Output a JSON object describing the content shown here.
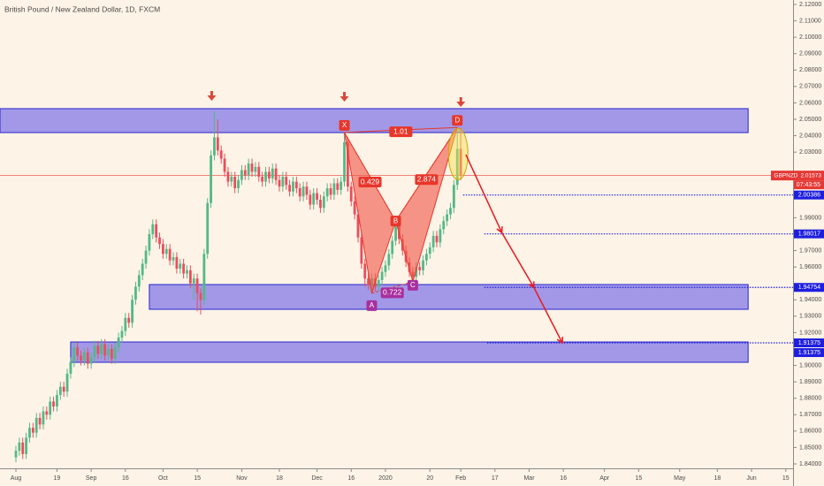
{
  "chart_data": {
    "type": "candlestick",
    "title": "British Pound / New Zealand Dollar, 1D, FXCM",
    "up_color": "#53b987",
    "down_color": "#eb4d5c",
    "x": [
      0,
      1,
      2,
      3,
      4,
      5,
      6,
      7,
      8,
      9,
      10,
      11,
      12,
      13,
      14,
      15,
      16,
      17,
      18,
      19,
      20,
      21,
      22,
      23,
      24,
      25,
      26,
      27,
      28,
      29,
      30,
      31,
      32,
      33,
      34,
      35,
      36,
      37,
      38,
      39,
      40,
      41,
      42,
      43,
      44,
      45,
      46,
      47,
      48,
      49,
      50,
      51,
      52,
      53,
      54,
      55,
      56,
      57,
      58,
      59,
      60,
      61,
      62,
      63,
      64,
      65,
      66,
      67,
      68,
      69,
      70,
      71,
      72,
      73,
      74,
      75,
      76,
      77,
      78,
      79,
      80,
      81,
      82,
      83,
      84,
      85,
      86,
      87,
      88,
      89,
      90,
      91,
      92,
      93,
      94,
      95,
      96,
      97,
      98,
      99,
      100,
      101,
      102,
      103,
      104,
      105,
      106,
      107,
      108,
      109,
      110,
      111,
      112,
      113,
      114,
      115,
      116,
      117,
      118,
      119,
      120,
      121,
      122,
      123,
      124,
      125,
      126,
      127,
      128,
      129,
      130
    ],
    "open": [
      1.844,
      1.848,
      1.853,
      1.846,
      1.856,
      1.862,
      1.859,
      1.868,
      1.864,
      1.872,
      1.87,
      1.878,
      1.875,
      1.882,
      1.887,
      1.884,
      1.895,
      1.902,
      1.911,
      1.906,
      1.903,
      1.908,
      1.901,
      1.905,
      1.912,
      1.907,
      1.913,
      1.906,
      1.91,
      1.904,
      1.911,
      1.917,
      1.921,
      1.929,
      1.926,
      1.94,
      1.948,
      1.955,
      1.962,
      1.97,
      1.98,
      1.986,
      1.978,
      1.974,
      1.968,
      1.971,
      1.964,
      1.966,
      1.959,
      1.962,
      1.956,
      1.958,
      1.95,
      1.953,
      1.944,
      1.94,
      1.968,
      1.999,
      2.028,
      2.039,
      2.031,
      2.026,
      2.018,
      2.012,
      2.015,
      2.008,
      2.013,
      2.019,
      2.016,
      2.023,
      2.018,
      2.021,
      2.015,
      2.012,
      2.018,
      2.014,
      2.02,
      2.013,
      2.009,
      2.015,
      2.01,
      2.006,
      2.012,
      2.008,
      2.003,
      2.009,
      2.004,
      1.998,
      2.005,
      2.001,
      1.996,
      2.003,
      2.008,
      2.004,
      2.011,
      2.007,
      2.012,
      2.036,
      2.009,
      2.0,
      1.992,
      1.978,
      1.962,
      1.953,
      1.949,
      1.953,
      1.948,
      1.952,
      1.957,
      1.961,
      1.968,
      1.976,
      1.985,
      1.977,
      1.97,
      1.963,
      1.957,
      1.954,
      1.96,
      1.958,
      1.964,
      1.968,
      1.972,
      1.979,
      1.975,
      1.983,
      1.988,
      1.992,
      1.996,
      2.01,
      2.032
    ],
    "high": [
      1.851,
      1.856,
      1.856,
      1.859,
      1.865,
      1.865,
      1.871,
      1.871,
      1.875,
      1.875,
      1.881,
      1.881,
      1.885,
      1.89,
      1.89,
      1.898,
      1.905,
      1.914,
      1.914,
      1.909,
      1.911,
      1.911,
      1.908,
      1.915,
      1.915,
      1.916,
      1.916,
      1.913,
      1.913,
      1.914,
      1.92,
      1.924,
      1.932,
      1.932,
      1.943,
      1.951,
      1.958,
      1.965,
      1.973,
      1.983,
      1.989,
      1.989,
      1.981,
      1.977,
      1.974,
      1.974,
      1.969,
      1.969,
      1.965,
      1.965,
      1.961,
      1.961,
      1.956,
      1.956,
      1.947,
      1.971,
      2.002,
      2.031,
      2.055,
      2.05,
      2.034,
      2.029,
      2.021,
      2.018,
      2.018,
      2.016,
      2.022,
      2.022,
      2.026,
      2.026,
      2.024,
      2.024,
      2.018,
      2.021,
      2.021,
      2.023,
      2.023,
      2.016,
      2.018,
      2.018,
      2.013,
      2.015,
      2.015,
      2.011,
      2.012,
      2.012,
      2.007,
      2.008,
      2.008,
      2.004,
      2.006,
      2.011,
      2.011,
      2.014,
      2.014,
      2.015,
      2.042,
      2.039,
      2.012,
      2.003,
      1.995,
      1.981,
      1.965,
      1.956,
      1.956,
      1.956,
      1.955,
      1.96,
      1.964,
      1.971,
      1.979,
      1.988,
      1.988,
      1.98,
      1.973,
      1.966,
      1.96,
      1.963,
      1.963,
      1.967,
      1.971,
      1.975,
      1.982,
      1.982,
      1.986,
      1.991,
      1.995,
      1.999,
      2.013,
      2.042,
      2.045
    ],
    "low": [
      1.841,
      1.845,
      1.843,
      1.843,
      1.853,
      1.856,
      1.856,
      1.861,
      1.861,
      1.867,
      1.867,
      1.872,
      1.872,
      1.879,
      1.881,
      1.881,
      1.892,
      1.899,
      1.903,
      1.9,
      1.9,
      1.898,
      1.898,
      1.902,
      1.904,
      1.904,
      1.903,
      1.903,
      1.901,
      1.901,
      1.908,
      1.914,
      1.918,
      1.923,
      1.923,
      1.937,
      1.945,
      1.952,
      1.959,
      1.967,
      1.977,
      1.975,
      1.971,
      1.965,
      1.965,
      1.961,
      1.961,
      1.956,
      1.956,
      1.953,
      1.953,
      1.947,
      1.94,
      1.933,
      1.931,
      1.937,
      1.965,
      1.996,
      2.025,
      2.028,
      2.023,
      2.015,
      2.009,
      2.009,
      2.005,
      2.005,
      2.01,
      2.013,
      2.013,
      2.015,
      2.015,
      2.012,
      2.009,
      2.009,
      2.011,
      2.011,
      2.01,
      2.006,
      2.006,
      2.007,
      2.003,
      2.003,
      2.005,
      2.0,
      2.0,
      2.001,
      1.995,
      1.995,
      1.998,
      1.993,
      1.993,
      2.0,
      2.001,
      2.001,
      2.004,
      2.004,
      2.009,
      2.006,
      1.997,
      1.989,
      1.975,
      1.959,
      1.948,
      1.946,
      1.944,
      1.945,
      1.945,
      1.949,
      1.954,
      1.958,
      1.965,
      1.973,
      1.974,
      1.967,
      1.96,
      1.954,
      1.951,
      1.951,
      1.955,
      1.955,
      1.961,
      1.965,
      1.969,
      1.972,
      1.972,
      1.98,
      1.985,
      1.989,
      1.993,
      2.007,
      2.013
    ],
    "close": [
      1.848,
      1.853,
      1.846,
      1.856,
      1.862,
      1.859,
      1.868,
      1.864,
      1.872,
      1.87,
      1.878,
      1.875,
      1.882,
      1.887,
      1.884,
      1.895,
      1.902,
      1.911,
      1.906,
      1.903,
      1.908,
      1.901,
      1.905,
      1.912,
      1.907,
      1.913,
      1.906,
      1.91,
      1.904,
      1.911,
      1.917,
      1.921,
      1.929,
      1.926,
      1.94,
      1.948,
      1.955,
      1.962,
      1.97,
      1.98,
      1.986,
      1.978,
      1.974,
      1.968,
      1.971,
      1.964,
      1.966,
      1.959,
      1.962,
      1.956,
      1.958,
      1.95,
      1.953,
      1.944,
      1.94,
      1.968,
      1.999,
      2.028,
      2.039,
      2.031,
      2.026,
      2.018,
      2.012,
      2.015,
      2.008,
      2.013,
      2.019,
      2.016,
      2.023,
      2.018,
      2.021,
      2.015,
      2.012,
      2.018,
      2.014,
      2.02,
      2.013,
      2.009,
      2.015,
      2.01,
      2.006,
      2.012,
      2.008,
      2.003,
      2.009,
      2.004,
      1.998,
      2.005,
      2.001,
      1.996,
      2.003,
      2.008,
      2.004,
      2.011,
      2.007,
      2.012,
      2.036,
      2.009,
      2.0,
      1.992,
      1.978,
      1.962,
      1.953,
      1.949,
      1.953,
      1.948,
      1.952,
      1.957,
      1.961,
      1.968,
      1.976,
      1.985,
      1.977,
      1.97,
      1.963,
      1.957,
      1.954,
      1.96,
      1.958,
      1.964,
      1.968,
      1.972,
      1.979,
      1.975,
      1.983,
      1.988,
      1.992,
      1.996,
      2.01,
      2.032,
      2.01573
    ],
    "xlim": [
      -4.65,
      227.13
    ],
    "ylim": [
      1.8373,
      2.1227
    ],
    "xticks": [
      {
        "value": 0,
        "label": "Aug"
      },
      {
        "value": 12,
        "label": "19"
      },
      {
        "value": 22,
        "label": "Sep"
      },
      {
        "value": 32,
        "label": "16"
      },
      {
        "value": 43,
        "label": "Oct"
      },
      {
        "value": 53,
        "label": "15"
      },
      {
        "value": 66,
        "label": "Nov"
      },
      {
        "value": 77,
        "label": "18"
      },
      {
        "value": 88,
        "label": "Dec"
      },
      {
        "value": 98,
        "label": "16"
      },
      {
        "value": 108,
        "label": "2020"
      },
      {
        "value": 121,
        "label": "20"
      },
      {
        "value": 130,
        "label": "Feb"
      },
      {
        "value": 140,
        "label": "17"
      },
      {
        "value": 150,
        "label": "Mar"
      },
      {
        "value": 160,
        "label": "16"
      },
      {
        "value": 172,
        "label": "Apr"
      },
      {
        "value": 182,
        "label": "15"
      },
      {
        "value": 194,
        "label": "May"
      },
      {
        "value": 205,
        "label": "18"
      },
      {
        "value": 215,
        "label": "Jun"
      },
      {
        "value": 225,
        "label": "15"
      }
    ],
    "yticks": [
      {
        "value": 2.12,
        "label": "2.12000"
      },
      {
        "value": 2.11,
        "label": "2.11000"
      },
      {
        "value": 2.1,
        "label": "2.10000"
      },
      {
        "value": 2.09,
        "label": "2.09000"
      },
      {
        "value": 2.08,
        "label": "2.08000"
      },
      {
        "value": 2.07,
        "label": "2.07000"
      },
      {
        "value": 2.06,
        "label": "2.06000"
      },
      {
        "value": 2.05,
        "label": "2.05000"
      },
      {
        "value": 2.04,
        "label": "2.04000"
      },
      {
        "value": 2.03,
        "label": "2.03000"
      },
      {
        "value": 1.99,
        "label": "1.99000"
      },
      {
        "value": 1.97,
        "label": "1.97000"
      },
      {
        "value": 1.96,
        "label": "1.96000"
      },
      {
        "value": 1.94,
        "label": "1.94000"
      },
      {
        "value": 1.93,
        "label": "1.93000"
      },
      {
        "value": 1.92,
        "label": "1.92000"
      },
      {
        "value": 1.9,
        "label": "1.90000"
      },
      {
        "value": 1.89,
        "label": "1.89000"
      },
      {
        "value": 1.88,
        "label": "1.88000"
      },
      {
        "value": 1.87,
        "label": "1.87000"
      },
      {
        "value": 1.86,
        "label": "1.86000"
      },
      {
        "value": 1.85,
        "label": "1.85000"
      },
      {
        "value": 1.84,
        "label": "1.84000"
      }
    ],
    "grid": false,
    "zones": [
      {
        "x": [
          -4.65,
          214
        ],
        "y": [
          2.0565,
          2.0419
        ]
      },
      {
        "x": [
          39,
          214
        ],
        "y": [
          1.9493,
          1.9342
        ]
      },
      {
        "x": [
          16,
          214
        ],
        "y": [
          1.9143,
          1.9019
        ]
      }
    ],
    "zone_color": "#7e74e8",
    "levels": [
      {
        "value": 2.00386,
        "x": 130.7
      },
      {
        "value": 1.98017,
        "x": 136.9
      },
      {
        "value": 1.94754,
        "x": 136.9
      },
      {
        "value": 1.91375,
        "x": 137.7
      },
      {
        "value": 1.91375
      }
    ],
    "level_color": "#1e1ee0",
    "last_price": {
      "symbol": "GBPNZD",
      "value": 2.01573,
      "countdown": "07:43:55",
      "color": "#e53935"
    },
    "pattern": {
      "points": [
        {
          "label": "X",
          "x": 96,
          "y": 2.042
        },
        {
          "label": "A",
          "x": 104,
          "y": 1.944
        },
        {
          "label": "B",
          "x": 111,
          "y": 1.988
        },
        {
          "label": "C",
          "x": 116,
          "y": 1.951
        },
        {
          "label": "D",
          "x": 129,
          "y": 2.045
        }
      ],
      "ratios": {
        "XB": 0.429,
        "BD": 2.874,
        "XD": 1.01,
        "AC": 0.722
      }
    },
    "projection": {
      "x": [
        131.5,
        142,
        151.4,
        159.7
      ],
      "y": [
        2.0285,
        1.981,
        1.9475,
        1.9137
      ],
      "color": "#e8191f"
    }
  }
}
